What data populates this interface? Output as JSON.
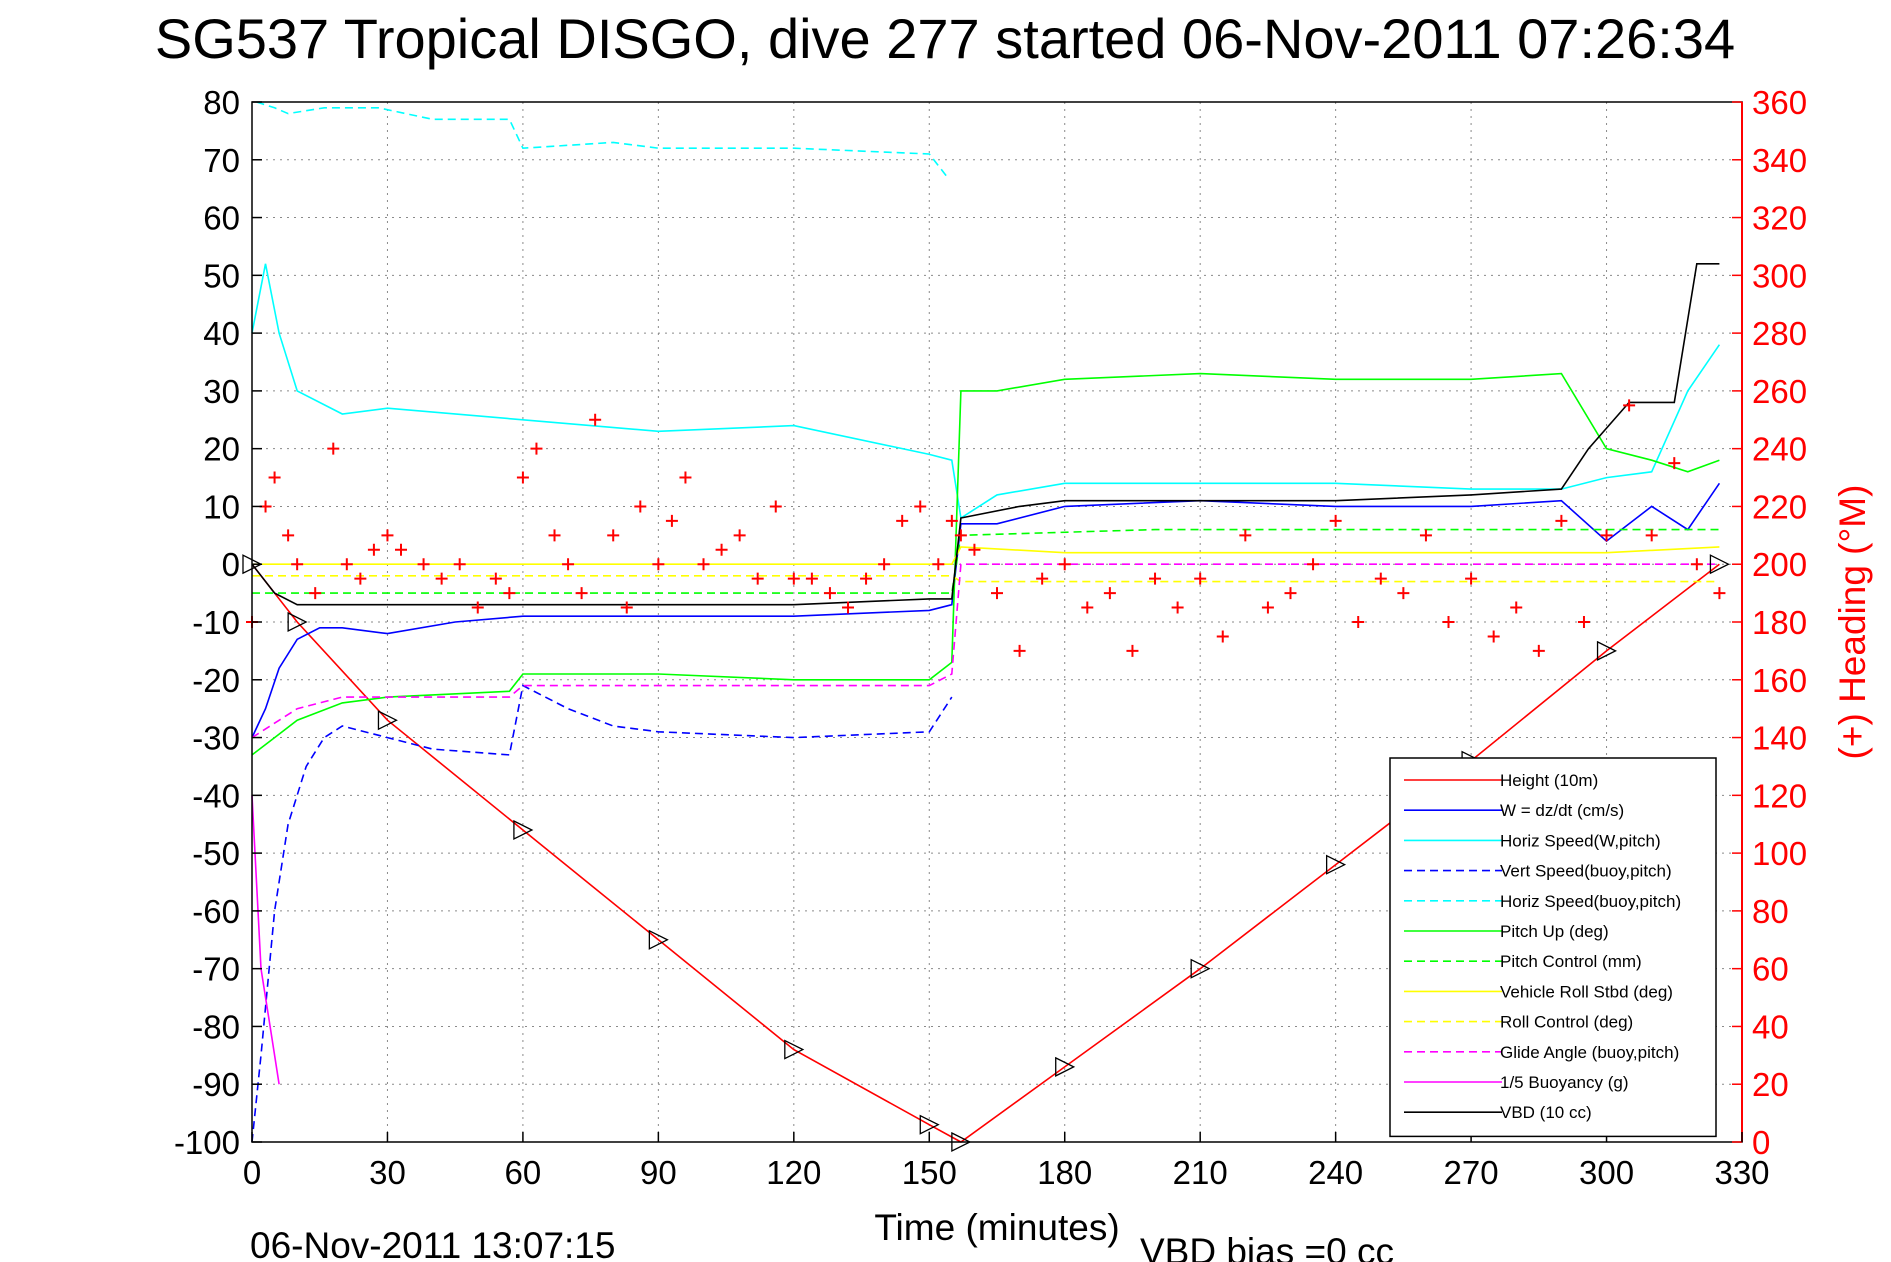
{
  "chart_data": {
    "type": "line",
    "title": "SG537 Tropical DISGO, dive 277 started 06-Nov-2011 07:26:34",
    "xlabel": "Time (minutes)",
    "ylabel": "",
    "ylabel_right": "(+) Heading (°M)",
    "xlim": [
      0,
      330
    ],
    "ylim": [
      -100,
      80
    ],
    "ylim_right": [
      0,
      360
    ],
    "x_ticks": [
      "0",
      "30",
      "60",
      "90",
      "120",
      "150",
      "180",
      "210",
      "240",
      "270",
      "300",
      "330"
    ],
    "y_ticks": [
      "80",
      "70",
      "60",
      "50",
      "40",
      "30",
      "20",
      "10",
      "0",
      "-10",
      "-20",
      "-30",
      "-40",
      "-50",
      "-60",
      "-70",
      "-80",
      "-90",
      "-100"
    ],
    "y_ticks_right": [
      "360",
      "340",
      "320",
      "300",
      "280",
      "260",
      "240",
      "220",
      "200",
      "180",
      "160",
      "140",
      "120",
      "100",
      "80",
      "60",
      "40",
      "20",
      "0"
    ],
    "grid": true,
    "legend_position": "bottom-right",
    "footer_left": "06-Nov-2011 13:07:15",
    "footer_right": "VBD bias =0 cc",
    "series": [
      {
        "name": "Height (10m)",
        "color": "#ff0000",
        "style": "solid",
        "x": [
          0,
          10,
          30,
          60,
          90,
          120,
          150,
          157,
          180,
          210,
          240,
          270,
          300,
          325
        ],
        "y": [
          0,
          -10,
          -27,
          -46,
          -65,
          -84,
          -97,
          -100,
          -87,
          -70,
          -52,
          -34,
          -15,
          0
        ]
      },
      {
        "name": "W = dz/dt (cm/s)",
        "color": "#0000ff",
        "style": "solid",
        "x": [
          0,
          3,
          6,
          10,
          15,
          20,
          30,
          45,
          60,
          90,
          120,
          150,
          155,
          157,
          165,
          180,
          210,
          240,
          270,
          290,
          300,
          310,
          318,
          325
        ],
        "y": [
          -30,
          -25,
          -18,
          -13,
          -11,
          -11,
          -12,
          -10,
          -9,
          -9,
          -9,
          -8,
          -7,
          7,
          7,
          10,
          11,
          10,
          10,
          11,
          4,
          10,
          6,
          14
        ]
      },
      {
        "name": "Horiz Speed(W,pitch)",
        "color": "#00ffff",
        "style": "solid",
        "x": [
          0,
          3,
          6,
          10,
          20,
          30,
          60,
          90,
          120,
          150,
          155,
          157,
          165,
          180,
          210,
          240,
          270,
          290,
          300,
          310,
          318,
          325
        ],
        "y": [
          40,
          52,
          40,
          30,
          26,
          27,
          25,
          23,
          24,
          19,
          18,
          8,
          12,
          14,
          14,
          14,
          13,
          13,
          15,
          16,
          30,
          38
        ]
      },
      {
        "name": "Vert Speed(buoy,pitch)",
        "color": "#0000ff",
        "style": "dashed",
        "x": [
          0,
          2,
          5,
          8,
          12,
          16,
          20,
          30,
          40,
          57,
          60,
          70,
          80,
          90,
          120,
          150,
          155
        ],
        "y": [
          -100,
          -85,
          -60,
          -45,
          -35,
          -30,
          -28,
          -30,
          -32,
          -33,
          -21,
          -25,
          -28,
          -29,
          -30,
          -29,
          -23
        ]
      },
      {
        "name": "Horiz Speed(buoy,pitch)",
        "color": "#00ffff",
        "style": "dashed",
        "x": [
          1,
          5,
          8,
          16,
          28,
          40,
          57,
          60,
          80,
          90,
          120,
          150,
          154
        ],
        "y": [
          80,
          79,
          78,
          79,
          79,
          77,
          77,
          72,
          73,
          72,
          72,
          71,
          67
        ]
      },
      {
        "name": "Pitch Up (deg)",
        "color": "#00ff00",
        "style": "solid",
        "x": [
          0,
          5,
          10,
          20,
          30,
          57,
          60,
          90,
          120,
          150,
          155,
          157,
          165,
          180,
          210,
          240,
          270,
          290,
          300,
          310,
          318,
          325
        ],
        "y": [
          -33,
          -30,
          -27,
          -24,
          -23,
          -22,
          -19,
          -19,
          -20,
          -20,
          -17,
          30,
          30,
          32,
          33,
          32,
          32,
          33,
          20,
          18,
          16,
          18
        ]
      },
      {
        "name": "Pitch Control (mm)",
        "color": "#00ff00",
        "style": "dashed",
        "x": [
          0,
          20,
          60,
          100,
          155,
          157,
          200,
          250,
          300,
          325
        ],
        "y": [
          -5,
          -5,
          -5,
          -5,
          -5,
          5,
          6,
          6,
          6,
          6
        ]
      },
      {
        "name": "Vehicle Roll Stbd (deg)",
        "color": "#ffff00",
        "style": "solid",
        "x": [
          0,
          30,
          60,
          90,
          120,
          150,
          155,
          157,
          180,
          210,
          240,
          270,
          300,
          325
        ],
        "y": [
          0,
          0,
          0,
          0,
          0,
          0,
          0,
          3,
          2,
          2,
          2,
          2,
          2,
          3
        ]
      },
      {
        "name": "Roll Control (deg)",
        "color": "#ffff00",
        "style": "dashed",
        "x": [
          0,
          60,
          120,
          155,
          157,
          200,
          250,
          300,
          325
        ],
        "y": [
          -2,
          -2,
          -2,
          -2,
          -3,
          -3,
          -3,
          -3,
          -3
        ]
      },
      {
        "name": "Glide Angle (buoy,pitch)",
        "color": "#ff00ff",
        "style": "dashed",
        "x": [
          0,
          10,
          20,
          30,
          57,
          60,
          90,
          120,
          150,
          155,
          157,
          200,
          250,
          300,
          325
        ],
        "y": [
          -30,
          -25,
          -23,
          -23,
          -23,
          -21,
          -21,
          -21,
          -21,
          -19,
          0,
          0,
          0,
          0,
          0
        ]
      },
      {
        "name": "1/5 Buoyancy (g)",
        "color": "#ff00ff",
        "style": "solid",
        "x": [
          0,
          2,
          4,
          6
        ],
        "y": [
          -40,
          -70,
          -80,
          -90
        ]
      },
      {
        "name": "VBD (10 cc)",
        "color": "#000000",
        "style": "solid",
        "x": [
          0,
          5,
          10,
          30,
          60,
          90,
          120,
          150,
          155,
          157,
          170,
          180,
          210,
          240,
          270,
          290,
          296,
          305,
          315,
          320,
          325
        ],
        "y": [
          0,
          -5,
          -7,
          -7,
          -7,
          -7,
          -7,
          -6,
          -6,
          8,
          10,
          11,
          11,
          11,
          12,
          13,
          20,
          28,
          28,
          52,
          52
        ]
      }
    ],
    "heading_series": {
      "name": "(+) Heading (°M)",
      "color": "#ff0000",
      "marker": "+",
      "axis": "right",
      "x": [
        0,
        3,
        5,
        8,
        10,
        14,
        18,
        21,
        24,
        27,
        30,
        33,
        38,
        42,
        46,
        50,
        54,
        57,
        60,
        63,
        67,
        70,
        73,
        76,
        80,
        83,
        86,
        90,
        93,
        96,
        100,
        104,
        108,
        112,
        116,
        120,
        124,
        128,
        132,
        136,
        140,
        144,
        148,
        152,
        155,
        157,
        160,
        165,
        170,
        175,
        180,
        185,
        190,
        195,
        200,
        205,
        210,
        215,
        220,
        225,
        230,
        235,
        240,
        245,
        250,
        255,
        260,
        265,
        270,
        275,
        280,
        285,
        290,
        295,
        300,
        305,
        310,
        315,
        320,
        325
      ],
      "y": [
        180,
        220,
        230,
        210,
        200,
        190,
        240,
        200,
        195,
        205,
        210,
        205,
        200,
        195,
        200,
        185,
        195,
        190,
        230,
        240,
        210,
        200,
        190,
        250,
        210,
        185,
        220,
        200,
        215,
        230,
        200,
        205,
        210,
        195,
        220,
        195,
        195,
        190,
        185,
        195,
        200,
        215,
        220,
        200,
        215,
        210,
        205,
        190,
        170,
        195,
        200,
        185,
        190,
        170,
        195,
        185,
        195,
        175,
        210,
        185,
        190,
        200,
        215,
        180,
        195,
        190,
        210,
        180,
        195,
        175,
        185,
        170,
        215,
        180,
        210,
        255,
        210,
        235,
        200,
        190
      ]
    }
  }
}
